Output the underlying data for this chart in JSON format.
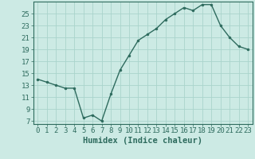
{
  "xlabel": "Humidex (Indice chaleur)",
  "x": [
    0,
    1,
    2,
    3,
    4,
    5,
    6,
    7,
    8,
    9,
    10,
    11,
    12,
    13,
    14,
    15,
    16,
    17,
    18,
    19,
    20,
    21,
    22,
    23
  ],
  "y": [
    14.0,
    13.5,
    13.0,
    12.5,
    12.5,
    7.5,
    8.0,
    7.0,
    11.5,
    15.5,
    18.0,
    20.5,
    21.5,
    22.5,
    24.0,
    25.0,
    26.0,
    25.5,
    26.5,
    26.5,
    23.0,
    21.0,
    19.5,
    19.0
  ],
  "line_color": "#2e6b5e",
  "marker": "o",
  "marker_size": 2.0,
  "bg_color": "#cceae4",
  "grid_color": "#aad4cc",
  "ylim": [
    6.5,
    27
  ],
  "yticks": [
    7,
    9,
    11,
    13,
    15,
    17,
    19,
    21,
    23,
    25
  ],
  "xlim": [
    -0.5,
    23.5
  ],
  "tick_fontsize": 6.5,
  "xlabel_fontsize": 7.5,
  "line_width": 1.0
}
